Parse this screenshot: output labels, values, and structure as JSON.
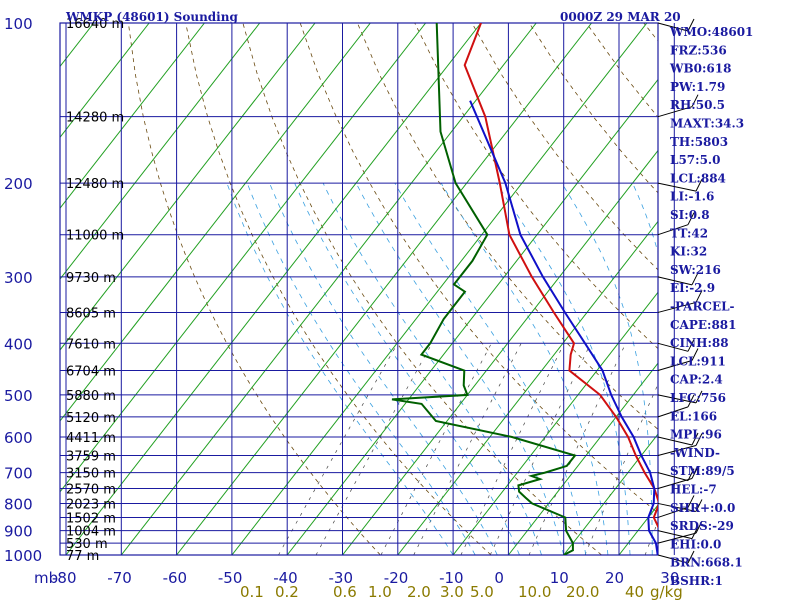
{
  "header": {
    "title": "WMKP (48601) Sounding",
    "time": "0000Z 29 MAR 20"
  },
  "chart_data": {
    "type": "line",
    "title": "WMKP (48601) Sounding",
    "pressure_unit_label": "mb",
    "pressure_levels": [
      100,
      200,
      300,
      400,
      500,
      600,
      700,
      800,
      900,
      1000
    ],
    "height_labels": [
      {
        "p": 100,
        "label": "16640 m"
      },
      {
        "p": 150,
        "label": "14280 m"
      },
      {
        "p": 200,
        "label": "12480 m"
      },
      {
        "p": 250,
        "label": "11000 m"
      },
      {
        "p": 300,
        "label": "9730 m"
      },
      {
        "p": 350,
        "label": "8605 m"
      },
      {
        "p": 400,
        "label": "7610 m"
      },
      {
        "p": 450,
        "label": "6704 m"
      },
      {
        "p": 500,
        "label": "5880 m"
      },
      {
        "p": 550,
        "label": "5120 m"
      },
      {
        "p": 600,
        "label": "4411 m"
      },
      {
        "p": 650,
        "label": "3759 m"
      },
      {
        "p": 700,
        "label": "3150 m"
      },
      {
        "p": 750,
        "label": "2570 m"
      },
      {
        "p": 800,
        "label": "2023 m"
      },
      {
        "p": 850,
        "label": "1502 m"
      },
      {
        "p": 900,
        "label": "1004 m"
      },
      {
        "p": 950,
        "label": "530 m"
      },
      {
        "p": 1000,
        "label": "77 m"
      }
    ],
    "temperature_ticks": [
      -80,
      -70,
      -60,
      -50,
      -40,
      -30,
      -20,
      -10,
      0,
      10,
      20,
      30
    ],
    "temperature_labels": [
      "-80",
      "-70",
      "-60",
      "-50",
      "-40",
      "-30",
      "-20",
      "-10",
      "0",
      "10",
      "20",
      "30"
    ],
    "mixing_ratio_labels": [
      "0.1",
      "0.2",
      "0.6",
      "1.0",
      "2.0",
      "3.0",
      "5.0",
      "10.0",
      "20.0",
      "40",
      "g/kg"
    ],
    "series": [
      {
        "key": "temperature",
        "color": "#d01010",
        "points": [
          [
            100,
            -80
          ],
          [
            120,
            -77
          ],
          [
            150,
            -66
          ],
          [
            200,
            -54
          ],
          [
            250,
            -45
          ],
          [
            300,
            -35
          ],
          [
            350,
            -26
          ],
          [
            400,
            -18
          ],
          [
            420,
            -17
          ],
          [
            450,
            -15
          ],
          [
            500,
            -6
          ],
          [
            550,
            0
          ],
          [
            600,
            5
          ],
          [
            650,
            9
          ],
          [
            700,
            13
          ],
          [
            750,
            17
          ],
          [
            800,
            20
          ],
          [
            850,
            21
          ],
          [
            900,
            24
          ],
          [
            950,
            27
          ],
          [
            1000,
            28
          ]
        ]
      },
      {
        "key": "parcel",
        "color": "#1010c8",
        "points": [
          [
            140,
            -71
          ],
          [
            200,
            -53
          ],
          [
            250,
            -43
          ],
          [
            300,
            -33
          ],
          [
            350,
            -24
          ],
          [
            400,
            -16
          ],
          [
            450,
            -9
          ],
          [
            500,
            -4
          ],
          [
            550,
            1
          ],
          [
            600,
            6
          ],
          [
            650,
            10
          ],
          [
            700,
            14
          ],
          [
            750,
            17
          ],
          [
            800,
            19
          ],
          [
            850,
            20
          ],
          [
            900,
            22
          ],
          [
            950,
            25
          ],
          [
            1000,
            27
          ]
        ]
      },
      {
        "key": "dewpoint",
        "color": "#006000",
        "points": [
          [
            100,
            -88
          ],
          [
            160,
            -72
          ],
          [
            200,
            -62
          ],
          [
            250,
            -49
          ],
          [
            280,
            -48
          ],
          [
            310,
            -48
          ],
          [
            320,
            -45
          ],
          [
            360,
            -45
          ],
          [
            400,
            -44
          ],
          [
            420,
            -44
          ],
          [
            450,
            -34
          ],
          [
            480,
            -32
          ],
          [
            500,
            -30
          ],
          [
            510,
            -43
          ],
          [
            520,
            -37
          ],
          [
            560,
            -32
          ],
          [
            600,
            -16
          ],
          [
            650,
            -2
          ],
          [
            680,
            -2
          ],
          [
            700,
            -5
          ],
          [
            710,
            -7
          ],
          [
            720,
            -5
          ],
          [
            740,
            -8
          ],
          [
            760,
            -7
          ],
          [
            780,
            -5
          ],
          [
            800,
            -3
          ],
          [
            850,
            5
          ],
          [
            900,
            7
          ],
          [
            950,
            10
          ],
          [
            980,
            11
          ],
          [
            1000,
            10
          ]
        ]
      }
    ],
    "indices": [
      "WMO:48601",
      "FRZ:536",
      "WB0:618",
      "PW:1.79",
      "RH:50.5",
      "MAXT:34.3",
      "TH:5803",
      "L57:5.0",
      "LCL:884",
      "LI:-1.6",
      "SI:0.8",
      "TT:42",
      "KI:32",
      "SW:216",
      "EI:-2.9",
      "-PARCEL-",
      "CAPE:881",
      "CINH:88",
      "LCL:911",
      "CAP:2.4",
      "LFC:756",
      "EL:166",
      "MPL:96",
      "-WIND-",
      "STM:89/5",
      "HEL:-7",
      "SHR+:0.0",
      "SRDS:-29",
      "EHI:0.0",
      "BRN:668.1",
      "BSHR:1"
    ],
    "wind_barb_levels": [
      100,
      150,
      200,
      250,
      300,
      350,
      400,
      450,
      500,
      550,
      600,
      650,
      700,
      750,
      800,
      850,
      900,
      950,
      1000
    ],
    "grid": true
  }
}
